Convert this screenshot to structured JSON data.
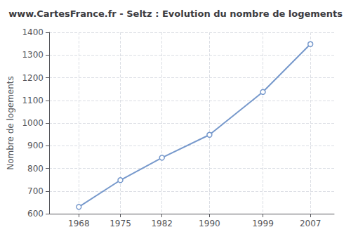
{
  "chart_data": {
    "type": "line",
    "title": "www.CartesFrance.fr - Seltz : Evolution du nombre de logements",
    "ylabel": "Nombre de logements",
    "x": [
      1968,
      1975,
      1982,
      1990,
      1999,
      2007
    ],
    "values": [
      630,
      748,
      847,
      948,
      1137,
      1348
    ],
    "color": "#7799cc",
    "marker": "circle",
    "xlim": [
      1963,
      2011
    ],
    "xticks": [
      1968,
      1975,
      1982,
      1990,
      1999,
      2007
    ],
    "ylim": [
      600,
      1400
    ],
    "yticks": [
      600,
      700,
      800,
      900,
      1000,
      1100,
      1200,
      1300,
      1400
    ],
    "grid": true
  }
}
